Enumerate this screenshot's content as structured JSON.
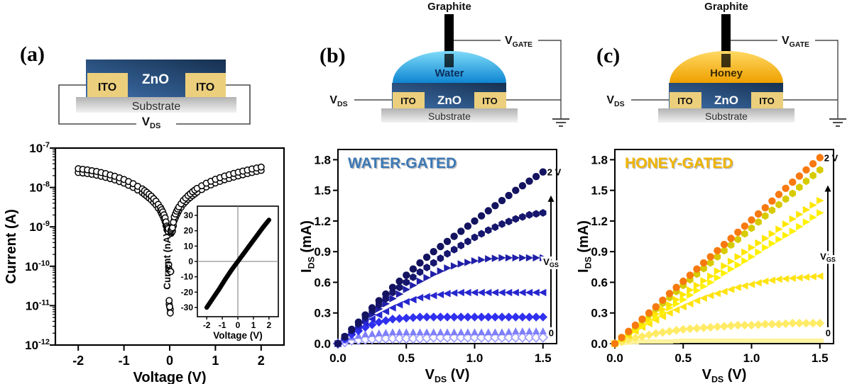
{
  "colors": {
    "water_light": "#7edbf8",
    "water_dark": "#0e86d2",
    "honey_light": "#ffd963",
    "honey_dark": "#efa000",
    "water_title": "#3b78b5",
    "honey_title": "#f0b400",
    "zno_light": "#3d6ea9",
    "zno_dark": "#16304f",
    "ito": "#eccf7c",
    "substrate_top": "#b2b2b2",
    "substrate_bottom": "#f2f2f2",
    "wire": "#4a4a4a",
    "graphite": "#000000"
  },
  "panels": {
    "a": {
      "tag": "(a)",
      "schematic": {
        "zno": "ZnO",
        "ito_left": "ITO",
        "ito_right": "ITO",
        "substrate": "Substrate",
        "vds_main": "V",
        "vds_sub": "DS"
      }
    },
    "b": {
      "tag": "(b)",
      "schematic": {
        "graphite": "Graphite",
        "liquid": "Water",
        "zno": "ZnO",
        "ito_left": "ITO",
        "ito_right": "ITO",
        "substrate": "Substrate",
        "vds_main": "V",
        "vds_sub": "DS",
        "vgate_main": "V",
        "vgate_sub": "GATE"
      }
    },
    "c": {
      "tag": "(c)",
      "schematic": {
        "graphite": "Graphite",
        "liquid": "Honey",
        "zno": "ZnO",
        "ito_left": "ITO",
        "ito_right": "ITO",
        "substrate": "Substrate",
        "vds_main": "V",
        "vds_sub": "DS",
        "vgate_main": "V",
        "vgate_sub": "GATE"
      }
    }
  },
  "chart_data": [
    {
      "target": "plot-a",
      "type": "scatter",
      "kind": "log_iv",
      "xlabel": "Voltage (V)",
      "ylabel": "Current (A)",
      "xlim": [
        -2.5,
        2.5
      ],
      "y_decades": [
        -7,
        -12
      ],
      "x_ticks": [
        [
          -2,
          "-2"
        ],
        [
          -1,
          "-1"
        ],
        [
          0,
          "0"
        ],
        [
          1,
          "1"
        ],
        [
          2,
          "2"
        ]
      ],
      "y_ticks_exponents": [
        -7,
        -8,
        -9,
        -10,
        -11,
        -12
      ],
      "series": [
        {
          "id": "sweep-1",
          "marker": "circle-open",
          "points": [
            [
              -2.0,
              2.4e-08
            ],
            [
              -1.8,
              2.25e-08
            ],
            [
              -1.6,
              2.05e-08
            ],
            [
              -1.4,
              1.8e-08
            ],
            [
              -1.2,
              1.55e-08
            ],
            [
              -1.0,
              1.28e-08
            ],
            [
              -0.8,
              1e-08
            ],
            [
              -0.6,
              7.4e-09
            ],
            [
              -0.5,
              6e-09
            ],
            [
              -0.4,
              4.8e-09
            ],
            [
              -0.3,
              3.6e-09
            ],
            [
              -0.2,
              2.5e-09
            ],
            [
              -0.15,
              1.9e-09
            ],
            [
              -0.1,
              1.35e-09
            ],
            [
              -0.06,
              8.5e-10
            ],
            [
              -0.03,
              7.5e-10
            ],
            [
              -0.012,
              1.1e-11
            ],
            [
              0.012,
              8e-12
            ],
            [
              0.03,
              6.8e-10
            ],
            [
              0.06,
              7.8e-10
            ],
            [
              0.1,
              1.45e-09
            ],
            [
              0.15,
              2e-09
            ],
            [
              0.2,
              2.6e-09
            ],
            [
              0.3,
              3.8e-09
            ],
            [
              0.4,
              5e-09
            ],
            [
              0.5,
              6.2e-09
            ],
            [
              0.6,
              7.6e-09
            ],
            [
              0.8,
              1.03e-08
            ],
            [
              1.0,
              1.3e-08
            ],
            [
              1.2,
              1.57e-08
            ],
            [
              1.4,
              1.83e-08
            ],
            [
              1.6,
              2.1e-08
            ],
            [
              1.8,
              2.4e-08
            ],
            [
              2.0,
              2.7e-08
            ]
          ]
        },
        {
          "id": "sweep-2",
          "marker": "circle-open",
          "points": [
            [
              -2.0,
              3e-08
            ],
            [
              -1.8,
              2.8e-08
            ],
            [
              -1.6,
              2.55e-08
            ],
            [
              -1.4,
              2.25e-08
            ],
            [
              -1.2,
              1.93e-08
            ],
            [
              -1.0,
              1.6e-08
            ],
            [
              -0.8,
              1.25e-08
            ],
            [
              -0.6,
              9.2e-09
            ],
            [
              -0.5,
              7.5e-09
            ],
            [
              -0.4,
              6e-09
            ],
            [
              -0.3,
              4.5e-09
            ],
            [
              -0.2,
              3.1e-09
            ],
            [
              -0.15,
              2.4e-09
            ],
            [
              -0.1,
              1.7e-09
            ],
            [
              -0.06,
              1.05e-09
            ],
            [
              -0.03,
              9e-10
            ],
            [
              -0.012,
              1.35e-11
            ],
            [
              0.012,
              6.5e-12
            ],
            [
              0.03,
              8.2e-10
            ],
            [
              0.06,
              9.5e-10
            ],
            [
              0.1,
              1.8e-09
            ],
            [
              0.15,
              2.5e-09
            ],
            [
              0.2,
              3.2e-09
            ],
            [
              0.3,
              4.7e-09
            ],
            [
              0.4,
              6.2e-09
            ],
            [
              0.5,
              7.8e-09
            ],
            [
              0.6,
              9.5e-09
            ],
            [
              0.8,
              1.28e-08
            ],
            [
              1.0,
              1.62e-08
            ],
            [
              1.2,
              1.95e-08
            ],
            [
              1.4,
              2.28e-08
            ],
            [
              1.6,
              2.6e-08
            ],
            [
              1.8,
              2.95e-08
            ],
            [
              2.0,
              3.3e-08
            ]
          ]
        }
      ],
      "inset": {
        "type": "line",
        "xlabel": "Voltage (V)",
        "ylabel": "Current (nA)",
        "xlim": [
          -2.6,
          2.6
        ],
        "ylim": [
          -36,
          36
        ],
        "x_ticks": [
          [
            -2,
            "-2"
          ],
          [
            -1,
            "-1"
          ],
          [
            0,
            "0"
          ],
          [
            1,
            "1"
          ],
          [
            2,
            "2"
          ]
        ],
        "y_ticks": [
          [
            30,
            "30"
          ],
          [
            20,
            "20"
          ],
          [
            10,
            "10"
          ],
          [
            0,
            "0"
          ],
          [
            -10,
            "-10"
          ],
          [
            -20,
            "-20"
          ],
          [
            -30,
            "-30"
          ]
        ],
        "points": [
          [
            -2,
            -30
          ],
          [
            -1.6,
            -24
          ],
          [
            -1.2,
            -18
          ],
          [
            -0.8,
            -11.5
          ],
          [
            -0.4,
            -5.5
          ],
          [
            0,
            0
          ],
          [
            0.4,
            5.5
          ],
          [
            0.8,
            11
          ],
          [
            1.2,
            16.5
          ],
          [
            1.6,
            22
          ],
          [
            2,
            27
          ]
        ]
      }
    },
    {
      "target": "plot-b",
      "type": "scatter",
      "kind": "output",
      "title": "WATER-GATED",
      "title_color": "#3b78b5",
      "xlabel": {
        "main": "V",
        "sub": "DS",
        "unit": " (V)"
      },
      "ylabel": {
        "main": "I",
        "sub": "DS",
        "unit": " (mA)"
      },
      "xlim": [
        0,
        1.6
      ],
      "ylim": [
        0,
        1.9
      ],
      "x_ticks": [
        [
          0,
          "0.0"
        ],
        [
          0.5,
          "0.5"
        ],
        [
          1,
          "1.0"
        ],
        [
          1.5,
          "1.5"
        ]
      ],
      "y_ticks": [
        [
          0,
          "0.0"
        ],
        [
          0.3,
          "0.3"
        ],
        [
          0.6,
          "0.6"
        ],
        [
          0.9,
          "0.9"
        ],
        [
          1.2,
          "1.2"
        ],
        [
          1.5,
          "1.5"
        ],
        [
          1.8,
          "1.8"
        ]
      ],
      "x": [
        0,
        0.1,
        0.2,
        0.3,
        0.4,
        0.5,
        0.6,
        0.7,
        0.8,
        0.9,
        1.0,
        1.1,
        1.2,
        1.3,
        1.4,
        1.5
      ],
      "series": [
        {
          "id": "vgs-max",
          "marker": "circle",
          "color": "#131360",
          "values": [
            0,
            0.14,
            0.28,
            0.42,
            0.55,
            0.67,
            0.79,
            0.9,
            1.0,
            1.1,
            1.2,
            1.3,
            1.4,
            1.5,
            1.59,
            1.68
          ]
        },
        {
          "id": "s2",
          "marker": "hexagon",
          "color": "#16166e",
          "values": [
            0,
            0.13,
            0.26,
            0.38,
            0.5,
            0.6,
            0.7,
            0.79,
            0.88,
            0.96,
            1.04,
            1.11,
            1.17,
            1.22,
            1.26,
            1.28
          ]
        },
        {
          "id": "s3",
          "marker": "tri-right",
          "color": "#1f1fa8",
          "values": [
            0,
            0.12,
            0.23,
            0.34,
            0.44,
            0.53,
            0.61,
            0.68,
            0.74,
            0.78,
            0.81,
            0.83,
            0.84,
            0.84,
            0.84,
            0.84
          ]
        },
        {
          "id": "s4",
          "marker": "tri-left",
          "color": "#2626cf",
          "values": [
            0,
            0.11,
            0.2,
            0.28,
            0.35,
            0.41,
            0.45,
            0.47,
            0.49,
            0.5,
            0.5,
            0.5,
            0.5,
            0.5,
            0.5,
            0.5
          ]
        },
        {
          "id": "s5",
          "marker": "diamond",
          "color": "#3030ef",
          "values": [
            0,
            0.09,
            0.16,
            0.21,
            0.24,
            0.25,
            0.26,
            0.26,
            0.26,
            0.26,
            0.26,
            0.26,
            0.26,
            0.26,
            0.26,
            0.26
          ]
        },
        {
          "id": "s6",
          "marker": "tri-up",
          "color": "#7f7ffa",
          "values": [
            0,
            0.06,
            0.09,
            0.1,
            0.11,
            0.11,
            0.11,
            0.11,
            0.11,
            0.11,
            0.11,
            0.11,
            0.11,
            0.12,
            0.12,
            0.12
          ]
        },
        {
          "id": "vgs-min",
          "marker": "diamond-open",
          "color": "#9a9aff",
          "values": [
            0,
            0.03,
            0.04,
            0.05,
            0.05,
            0.05,
            0.05,
            0.06,
            0.06,
            0.06,
            0.06,
            0.06,
            0.06,
            0.06,
            0.06,
            0.06
          ]
        }
      ],
      "annotations": {
        "top_label": "2 V",
        "bottom_label": "0",
        "arrow_label": {
          "main": "V",
          "sub": "GS"
        },
        "arrow_from": 0.16,
        "arrow_to": 1.45,
        "bottom_y": 0.1
      }
    },
    {
      "target": "plot-c",
      "type": "scatter",
      "kind": "output",
      "title": "HONEY-GATED",
      "title_color": "#f0b400",
      "xlabel": {
        "main": "V",
        "sub": "DS",
        "unit": " (V)"
      },
      "ylabel": {
        "main": "I",
        "sub": "DS",
        "unit": " (mA)"
      },
      "xlim": [
        0,
        1.6
      ],
      "ylim": [
        0,
        1.9
      ],
      "x_ticks": [
        [
          0,
          "0.0"
        ],
        [
          0.5,
          "0.5"
        ],
        [
          1,
          "1.0"
        ],
        [
          1.5,
          "1.5"
        ]
      ],
      "y_ticks": [
        [
          0,
          "0.0"
        ],
        [
          0.3,
          "0.3"
        ],
        [
          0.6,
          "0.6"
        ],
        [
          0.9,
          "0.9"
        ],
        [
          1.2,
          "1.2"
        ],
        [
          1.5,
          "1.5"
        ],
        [
          1.8,
          "1.8"
        ]
      ],
      "x": [
        0,
        0.1,
        0.2,
        0.3,
        0.4,
        0.5,
        0.6,
        0.7,
        0.8,
        0.9,
        1.0,
        1.1,
        1.2,
        1.3,
        1.4,
        1.5
      ],
      "series": [
        {
          "id": "vgs-max",
          "marker": "circle",
          "color": "#f8790f",
          "values": [
            0,
            0.12,
            0.24,
            0.36,
            0.49,
            0.61,
            0.73,
            0.85,
            0.97,
            1.09,
            1.21,
            1.33,
            1.46,
            1.58,
            1.7,
            1.82
          ]
        },
        {
          "id": "h2",
          "marker": "hexagon",
          "color": "#d7cb00",
          "values": [
            0,
            0.11,
            0.23,
            0.34,
            0.45,
            0.57,
            0.68,
            0.79,
            0.91,
            1.02,
            1.13,
            1.25,
            1.36,
            1.47,
            1.59,
            1.7
          ]
        },
        {
          "id": "h3",
          "marker": "tri-right",
          "color": "#ffe600",
          "values": [
            0,
            0.1,
            0.19,
            0.29,
            0.38,
            0.48,
            0.57,
            0.66,
            0.76,
            0.85,
            0.94,
            1.03,
            1.12,
            1.22,
            1.31,
            1.4
          ]
        },
        {
          "id": "h4",
          "marker": "tri-right",
          "color": "#fff100",
          "values": [
            0,
            0.09,
            0.17,
            0.26,
            0.35,
            0.43,
            0.52,
            0.6,
            0.69,
            0.77,
            0.85,
            0.94,
            1.02,
            1.1,
            1.19,
            1.28
          ]
        },
        {
          "id": "h5",
          "marker": "tri-left",
          "color": "#ffe312",
          "values": [
            0,
            0.08,
            0.16,
            0.23,
            0.3,
            0.36,
            0.42,
            0.47,
            0.51,
            0.55,
            0.58,
            0.61,
            0.63,
            0.64,
            0.65,
            0.66
          ]
        },
        {
          "id": "h6",
          "marker": "diamond",
          "color": "#ffeb66",
          "values": [
            0,
            0.04,
            0.07,
            0.1,
            0.12,
            0.14,
            0.15,
            0.16,
            0.17,
            0.18,
            0.18,
            0.19,
            0.19,
            0.2,
            0.2,
            0.2
          ]
        },
        {
          "id": "vgs-min",
          "marker": "square",
          "color": "#fdf3a0",
          "values": [
            0,
            0.01,
            0.02,
            0.02,
            0.02,
            0.03,
            0.03,
            0.03,
            0.03,
            0.03,
            0.03,
            0.03,
            0.03,
            0.03,
            0.03,
            0.03
          ]
        }
      ],
      "annotations": {
        "top_label": "2 V",
        "bottom_label": "0",
        "arrow_label": {
          "main": "V",
          "sub": "GS"
        },
        "arrow_from": 0.16,
        "arrow_to": 1.55,
        "bottom_y": 0.1
      }
    }
  ]
}
